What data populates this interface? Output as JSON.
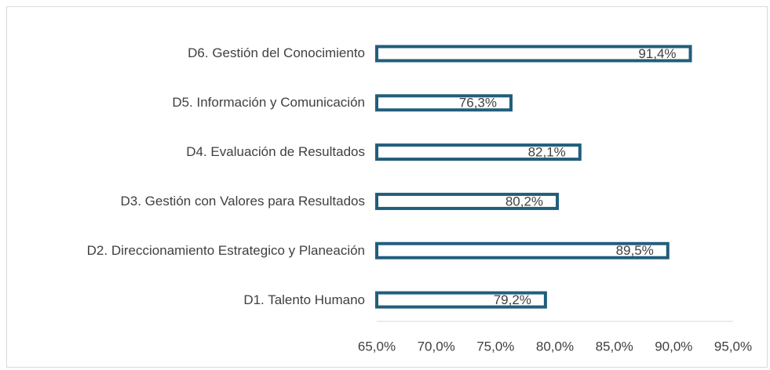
{
  "chart_data": {
    "type": "bar",
    "orientation": "horizontal",
    "categories": [
      "D6. Gestión del Conocimiento",
      "D5. Información y Comunicación",
      "D4. Evaluación de Resultados",
      "D3. Gestión con Valores para Resultados",
      "D2. Direccionamiento Estrategico y Planeación",
      "D1. Talento Humano"
    ],
    "values": [
      91.4,
      76.3,
      82.1,
      80.2,
      89.5,
      79.2
    ],
    "value_labels": [
      "91,4%",
      "76,3%",
      "82,1%",
      "80,2%",
      "89,5%",
      "79,2%"
    ],
    "color": "#215e7c",
    "xlim": [
      65,
      95
    ],
    "xticks": [
      {
        "value": 65,
        "label": "65,0%"
      },
      {
        "value": 70,
        "label": "70,0%"
      },
      {
        "value": 75,
        "label": "75,0%"
      },
      {
        "value": 80,
        "label": "80,0%"
      },
      {
        "value": 85,
        "label": "85,0%"
      },
      {
        "value": 90,
        "label": "90,0%"
      },
      {
        "value": 95,
        "label": "95,0%"
      }
    ],
    "grid": false
  }
}
